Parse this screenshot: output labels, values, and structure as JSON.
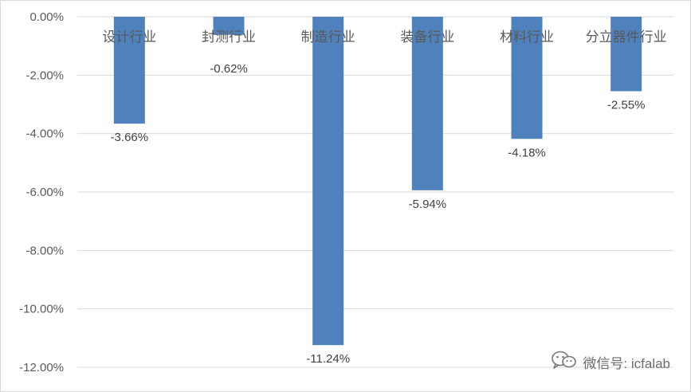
{
  "chart_data": {
    "type": "bar",
    "categories": [
      "设计行业",
      "封测行业",
      "制造行业",
      "装备行业",
      "材料行业",
      "分立器件行业"
    ],
    "values": [
      -3.66,
      -0.62,
      -11.24,
      -5.94,
      -4.18,
      -2.55
    ],
    "data_labels": [
      "-3.66%",
      "-0.62%",
      "-11.24%",
      "-5.94%",
      "-4.18%",
      "-2.55%"
    ],
    "y_ticks": [
      0,
      -2,
      -4,
      -6,
      -8,
      -10,
      -12
    ],
    "y_tick_labels": [
      "0.00%",
      "-2.00%",
      "-4.00%",
      "-6.00%",
      "-8.00%",
      "-10.00%",
      "-12.00%"
    ],
    "ylim": [
      -12,
      0
    ],
    "grid": true,
    "bar_color": "#4f81bd",
    "title": "",
    "xlabel": "",
    "ylabel": ""
  },
  "watermark": {
    "text": "微信号: icfalab",
    "icon": "wechat-icon"
  }
}
